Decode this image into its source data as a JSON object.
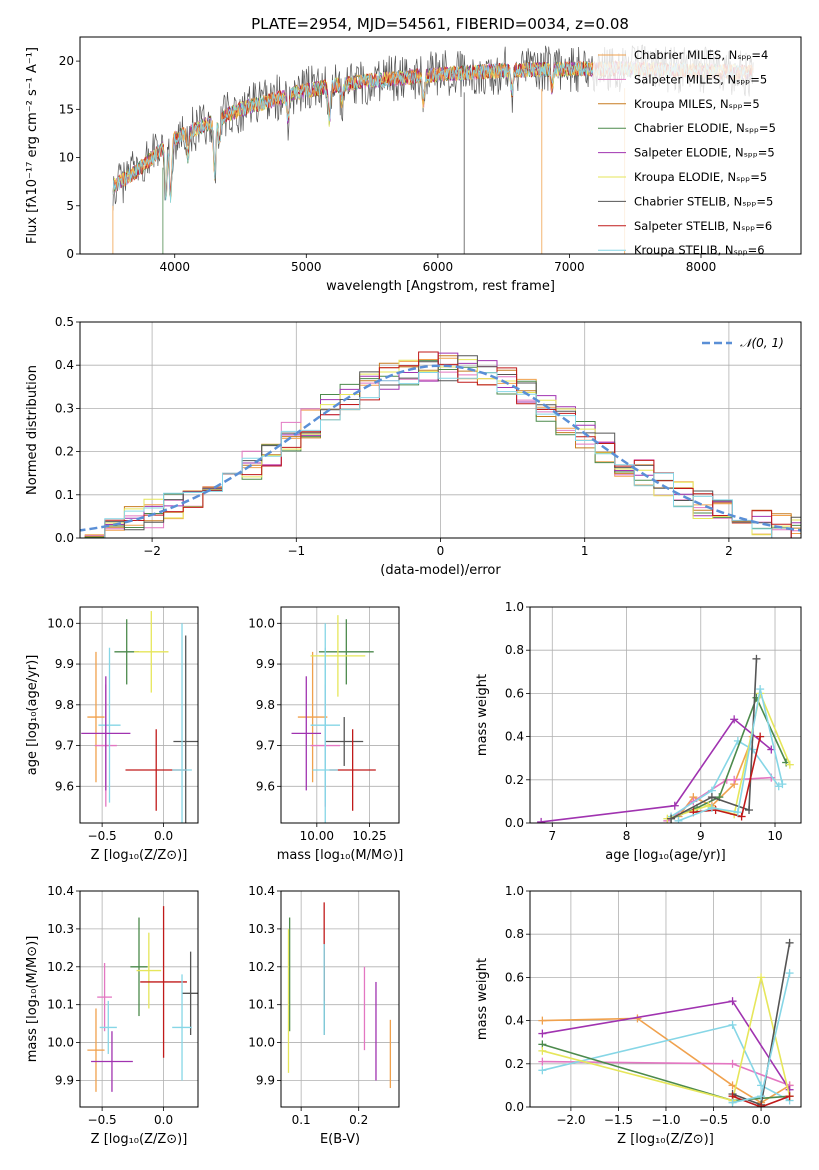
{
  "title": "PLATE=2954, MJD=54561, FIBERID=0034, z=0.08",
  "colors": [
    "#f0a14d",
    "#e377c2",
    "#c77c20",
    "#4c8a4c",
    "#a033b0",
    "#e6e65a",
    "#555555",
    "#c01a1a",
    "#86d6e6"
  ],
  "chart_data": [
    {
      "panel": "spectrum",
      "type": "line",
      "xlabel": "wavelength [Angstrom, rest frame]",
      "ylabel": "Flux [fλ10⁻¹⁷ erg cm⁻² s⁻¹ A⁻¹]",
      "xlim": [
        3280,
        8760
      ],
      "ylim": [
        0,
        22.5
      ],
      "xticks": [
        "4000",
        "5000",
        "6000",
        "7000",
        "8000"
      ],
      "yticks": [
        "0",
        "5",
        "10",
        "15",
        "20"
      ],
      "legend": [
        "Chabrier MILES, Nₛₚₚ=4",
        "Salpeter MILES, Nₛₚₚ=5",
        "Kroupa MILES, Nₛₚₚ=5",
        "Chabrier ELODIE, Nₛₚₚ=5",
        "Salpeter ELODIE, Nₛₚₚ=5",
        "Kroupa ELODIE, Nₛₚₚ=5",
        "Chabrier STELIB, Nₛₚₚ=5",
        "Salpeter STELIB, Nₛₚₚ=6",
        "Kroupa STELIB, Nₛₚₚ=6"
      ],
      "continuum": {
        "x": [
          3530,
          3700,
          4000,
          4500,
          5000,
          5500,
          6000,
          6500,
          7000,
          7500,
          8000,
          8400
        ],
        "y": [
          7.0,
          8.5,
          12.0,
          15.0,
          17.0,
          18.0,
          18.6,
          19.0,
          19.2,
          19.2,
          19.0,
          18.8
        ]
      }
    },
    {
      "panel": "residuals",
      "type": "histogram",
      "xlabel": "(data-model)/error",
      "ylabel": "Normed distribution",
      "xlim": [
        -2.5,
        2.5
      ],
      "ylim": [
        0,
        0.5
      ],
      "xticks": [
        "−2",
        "−1",
        "0",
        "1",
        "2"
      ],
      "yticks": [
        "0.0",
        "0.1",
        "0.2",
        "0.3",
        "0.4",
        "0.5"
      ],
      "legend": [
        "𝒩(0, 1)"
      ]
    },
    {
      "panel": "age-vs-Z",
      "type": "scatter",
      "xlabel": "Z [log₁₀(Z/Z⊙)]",
      "ylabel": "age  [log₁₀(age/yr)]",
      "xlim": [
        -0.68,
        0.28
      ],
      "ylim": [
        9.51,
        10.04
      ],
      "xticks": [
        "−0.5",
        "0.0"
      ],
      "yticks": [
        "9.6",
        "9.7",
        "9.8",
        "9.9",
        "10.0"
      ],
      "points": [
        {
          "x": -0.55,
          "y": 9.77,
          "xerr": 0.07,
          "yerr": 0.16,
          "c": 0
        },
        {
          "x": -0.47,
          "y": 9.7,
          "xerr": 0.09,
          "yerr": 0.15,
          "c": 1
        },
        {
          "x": -0.44,
          "y": 9.75,
          "xerr": 0.09,
          "yerr": 0.19,
          "c": 8
        },
        {
          "x": -0.3,
          "y": 9.93,
          "xerr": 0.1,
          "yerr": 0.08,
          "c": 3
        },
        {
          "x": -0.47,
          "y": 9.73,
          "xerr": 0.2,
          "yerr": 0.14,
          "c": 4
        },
        {
          "x": -0.1,
          "y": 9.93,
          "xerr": 0.14,
          "yerr": 0.1,
          "c": 5
        },
        {
          "x": 0.18,
          "y": 9.71,
          "xerr": 0.1,
          "yerr": 0.26,
          "c": 6
        },
        {
          "x": -0.06,
          "y": 9.64,
          "xerr": 0.25,
          "yerr": 0.1,
          "c": 7
        },
        {
          "x": 0.15,
          "y": 9.64,
          "xerr": 0.08,
          "yerr": 0.36,
          "c": 8
        }
      ]
    },
    {
      "panel": "age-vs-mass",
      "type": "scatter",
      "xlabel": "mass [log₁₀(M/M⊙)]",
      "ylabel": "",
      "xlim": [
        9.83,
        10.39
      ],
      "ylim": [
        9.51,
        10.04
      ],
      "xticks": [
        "10.00",
        "10.25"
      ],
      "yticks": [
        "9.6",
        "9.7",
        "9.8",
        "9.9",
        "10.0"
      ],
      "points": [
        {
          "x": 9.98,
          "y": 9.77,
          "xerr": 0.07,
          "yerr": 0.16,
          "c": 0
        },
        {
          "x": 10.04,
          "y": 9.7,
          "xerr": 0.07,
          "yerr": 0.15,
          "c": 1
        },
        {
          "x": 10.04,
          "y": 9.75,
          "xerr": 0.07,
          "yerr": 0.19,
          "c": 8
        },
        {
          "x": 10.14,
          "y": 9.93,
          "xerr": 0.13,
          "yerr": 0.08,
          "c": 3
        },
        {
          "x": 9.95,
          "y": 9.73,
          "xerr": 0.07,
          "yerr": 0.14,
          "c": 4
        },
        {
          "x": 10.1,
          "y": 9.92,
          "xerr": 0.13,
          "yerr": 0.1,
          "c": 5
        },
        {
          "x": 10.13,
          "y": 9.71,
          "xerr": 0.09,
          "yerr": 0.06,
          "c": 6
        },
        {
          "x": 10.17,
          "y": 9.64,
          "xerr": 0.11,
          "yerr": 0.1,
          "c": 7
        },
        {
          "x": 10.04,
          "y": 9.64,
          "xerr": 0.06,
          "yerr": 0.36,
          "c": 8
        }
      ]
    },
    {
      "panel": "weight-vs-age",
      "type": "line",
      "xlabel": "age  [log₁₀(age/yr)]",
      "ylabel": "mass weight",
      "xlim": [
        6.7,
        10.35
      ],
      "ylim": [
        0,
        1
      ],
      "xticks": [
        "7",
        "8",
        "9",
        "10"
      ],
      "yticks": [
        "0.0",
        "0.2",
        "0.4",
        "0.6",
        "0.8",
        "1.0"
      ],
      "series": [
        {
          "c": 0,
          "x": [
            8.7,
            8.9,
            9.15,
            9.45,
            9.7
          ],
          "y": [
            0.03,
            0.12,
            0.08,
            0.18,
            0.4
          ]
        },
        {
          "c": 1,
          "x": [
            8.55,
            8.9,
            9.35,
            9.45,
            9.95
          ],
          "y": [
            0.01,
            0.1,
            0.2,
            0.2,
            0.21
          ]
        },
        {
          "c": 8,
          "x": [
            8.6,
            9.15,
            9.5,
            9.7,
            10.05
          ],
          "y": [
            0.03,
            0.15,
            0.38,
            0.34,
            0.17
          ]
        },
        {
          "c": 3,
          "x": [
            8.6,
            8.95,
            9.25,
            9.75,
            10.15
          ],
          "y": [
            0.02,
            0.07,
            0.12,
            0.58,
            0.28
          ]
        },
        {
          "c": 4,
          "x": [
            6.85,
            8.65,
            9.45,
            9.95
          ],
          "y": [
            0.005,
            0.08,
            0.48,
            0.34
          ]
        },
        {
          "c": 5,
          "x": [
            8.55,
            9.1,
            9.45,
            9.8,
            10.2
          ],
          "y": [
            0.02,
            0.08,
            0.04,
            0.6,
            0.27
          ]
        },
        {
          "c": 6,
          "x": [
            8.6,
            9.15,
            9.65,
            9.75
          ],
          "y": [
            0.02,
            0.12,
            0.06,
            0.76
          ]
        },
        {
          "c": 7,
          "x": [
            8.9,
            9.2,
            9.55,
            9.8
          ],
          "y": [
            0.05,
            0.06,
            0.03,
            0.4
          ]
        },
        {
          "c": 8,
          "x": [
            8.7,
            9.15,
            9.5,
            9.8,
            10.1
          ],
          "y": [
            0.01,
            0.07,
            0.05,
            0.62,
            0.18
          ]
        }
      ]
    },
    {
      "panel": "mass-vs-Z",
      "type": "scatter",
      "xlabel": "Z [log₁₀(Z/Z⊙)]",
      "ylabel": "mass [log₁₀(M/M⊙)]",
      "xlim": [
        -0.68,
        0.28
      ],
      "ylim": [
        9.83,
        10.4
      ],
      "xticks": [
        "−0.5",
        "0.0"
      ],
      "yticks": [
        "9.9",
        "10.0",
        "10.1",
        "10.2",
        "10.3",
        "10.4"
      ],
      "points": [
        {
          "x": -0.55,
          "y": 9.98,
          "xerr": 0.07,
          "yerr": 0.11,
          "c": 0
        },
        {
          "x": -0.48,
          "y": 10.12,
          "xerr": 0.06,
          "yerr": 0.09,
          "c": 1
        },
        {
          "x": -0.45,
          "y": 10.04,
          "xerr": 0.07,
          "yerr": 0.07,
          "c": 8
        },
        {
          "x": -0.2,
          "y": 10.2,
          "xerr": 0.07,
          "yerr": 0.13,
          "c": 3
        },
        {
          "x": -0.42,
          "y": 9.95,
          "xerr": 0.17,
          "yerr": 0.08,
          "c": 4
        },
        {
          "x": -0.12,
          "y": 10.19,
          "xerr": 0.1,
          "yerr": 0.1,
          "c": 5
        },
        {
          "x": 0.22,
          "y": 10.13,
          "xerr": 0.07,
          "yerr": 0.11,
          "c": 6
        },
        {
          "x": 0.0,
          "y": 10.16,
          "xerr": 0.19,
          "yerr": 0.2,
          "c": 7
        },
        {
          "x": 0.15,
          "y": 10.04,
          "xerr": 0.08,
          "yerr": 0.14,
          "c": 8
        }
      ]
    },
    {
      "panel": "mass-vs-EBV",
      "type": "scatter",
      "xlabel": "E(B-V)",
      "ylabel": "",
      "xlim": [
        0.065,
        0.27
      ],
      "ylim": [
        9.83,
        10.4
      ],
      "xticks": [
        "0.1",
        "0.2"
      ],
      "yticks": [
        "9.9",
        "10.0",
        "10.1",
        "10.2",
        "10.3",
        "10.4"
      ],
      "points": [
        {
          "x": 0.255,
          "y": 9.97,
          "xerr": 0,
          "yerr": 0.09,
          "c": 0
        },
        {
          "x": 0.21,
          "y": 10.09,
          "xerr": 0,
          "yerr": 0.11,
          "c": 1
        },
        {
          "x": 0.14,
          "y": 10.14,
          "xerr": 0,
          "yerr": 0.11,
          "c": 8
        },
        {
          "x": 0.08,
          "y": 10.18,
          "xerr": 0,
          "yerr": 0.15,
          "c": 3
        },
        {
          "x": 0.23,
          "y": 10.03,
          "xerr": 0,
          "yerr": 0.13,
          "c": 4
        },
        {
          "x": 0.078,
          "y": 10.11,
          "xerr": 0,
          "yerr": 0.19,
          "c": 5
        },
        {
          "x": 0.14,
          "y": 10.11,
          "xerr": 0,
          "yerr": 0.09,
          "c": 6
        },
        {
          "x": 0.14,
          "y": 10.24,
          "xerr": 0,
          "yerr": 0.13,
          "c": 7
        },
        {
          "x": 0.14,
          "y": 10.14,
          "xerr": 0,
          "yerr": 0.12,
          "c": 8
        }
      ]
    },
    {
      "panel": "weight-vs-Z",
      "type": "line",
      "xlabel": "Z [log₁₀(Z/Z⊙)]",
      "ylabel": "mass weight",
      "xlim": [
        -2.43,
        0.42
      ],
      "ylim": [
        0,
        1
      ],
      "xticks": [
        "−2.0",
        "−1.5",
        "−1.0",
        "−0.5",
        "0.0"
      ],
      "yticks": [
        "0.0",
        "0.2",
        "0.4",
        "0.6",
        "0.8",
        "1.0"
      ],
      "series": [
        {
          "c": 0,
          "x": [
            -2.3,
            -1.3,
            -0.3,
            0.0,
            0.3
          ],
          "y": [
            0.4,
            0.41,
            0.1,
            0.02,
            0.1
          ]
        },
        {
          "c": 1,
          "x": [
            -2.3,
            -0.3,
            0.3
          ],
          "y": [
            0.21,
            0.2,
            0.1
          ]
        },
        {
          "c": 8,
          "x": [
            -2.3,
            -0.3,
            0.0,
            0.3
          ],
          "y": [
            0.17,
            0.38,
            0.1,
            0.03
          ]
        },
        {
          "c": 3,
          "x": [
            -2.3,
            -0.3,
            0.3
          ],
          "y": [
            0.29,
            0.03,
            0.05
          ]
        },
        {
          "c": 4,
          "x": [
            -2.3,
            -0.3,
            0.3
          ],
          "y": [
            0.34,
            0.49,
            0.08
          ]
        },
        {
          "c": 5,
          "x": [
            -2.3,
            -0.3,
            0.0,
            0.3
          ],
          "y": [
            0.26,
            0.03,
            0.6,
            0.05
          ]
        },
        {
          "c": 6,
          "x": [
            -0.3,
            0.0,
            0.3
          ],
          "y": [
            0.06,
            0.01,
            0.76
          ]
        },
        {
          "c": 7,
          "x": [
            -0.3,
            0.0,
            0.3
          ],
          "y": [
            0.05,
            0.0,
            0.05
          ]
        },
        {
          "c": 8,
          "x": [
            -0.3,
            0.0,
            0.3
          ],
          "y": [
            0.02,
            0.05,
            0.62
          ]
        }
      ]
    }
  ]
}
